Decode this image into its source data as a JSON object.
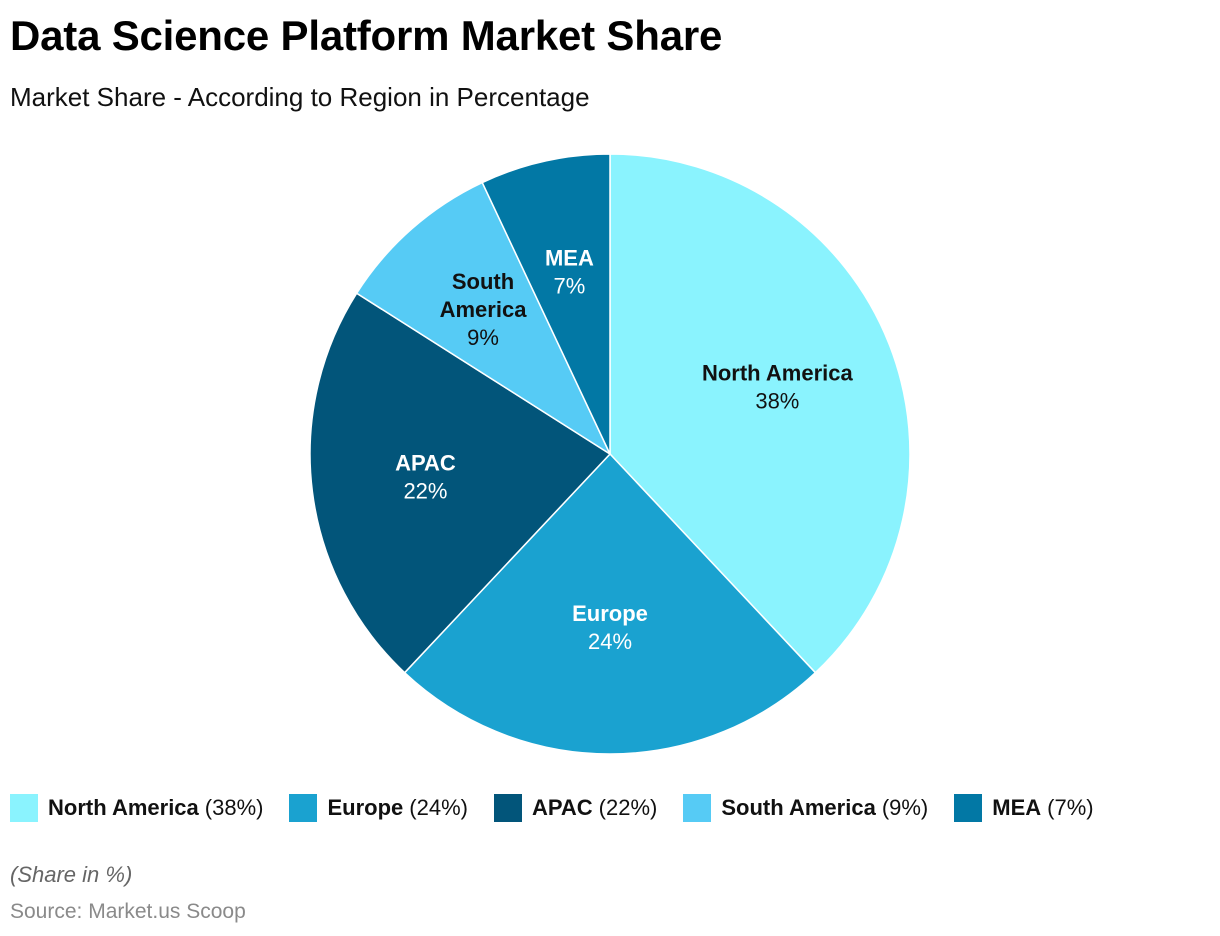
{
  "header": {
    "title": "Data Science Platform Market Share",
    "subtitle": "Market Share - According to Region in Percentage"
  },
  "footer": {
    "note": "(Share in %)",
    "source": "Source: Market.us Scoop"
  },
  "chart_data": {
    "type": "pie",
    "title": "Data Science Platform Market Share",
    "subtitle": "Market Share - According to Region in Percentage",
    "unit": "%",
    "legend_position": "bottom",
    "slices": [
      {
        "name": "North America",
        "value": 38,
        "label": "38%",
        "legend_value": "(38%)",
        "color": "#8af3fe",
        "text_color": "#111111"
      },
      {
        "name": "Europe",
        "value": 24,
        "label": "24%",
        "legend_value": "(24%)",
        "color": "#1aa2d0",
        "text_color": "#ffffff"
      },
      {
        "name": "APAC",
        "value": 22,
        "label": "22%",
        "legend_value": "(22%)",
        "color": "#02557a",
        "text_color": "#ffffff"
      },
      {
        "name": "South America",
        "value": 9,
        "label": "9%",
        "legend_value": "(9%)",
        "color": "#56cbf5",
        "text_color": "#111111"
      },
      {
        "name": "MEA",
        "value": 7,
        "label": "7%",
        "legend_value": "(7%)",
        "color": "#0278a5",
        "text_color": "#ffffff"
      }
    ]
  }
}
